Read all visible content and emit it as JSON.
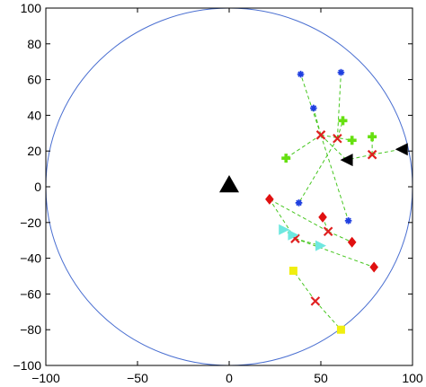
{
  "chart_data": {
    "type": "scatter",
    "title": "",
    "xlabel": "",
    "ylabel": "",
    "xlim": [
      -100,
      100
    ],
    "ylim": [
      -100,
      100
    ],
    "x_ticks": [
      -100,
      -50,
      0,
      50,
      100
    ],
    "y_ticks": [
      -100,
      -80,
      -60,
      -40,
      -20,
      0,
      20,
      40,
      60,
      80,
      100
    ],
    "x_tick_labels": [
      "−100",
      "−50",
      "0",
      "50",
      "100"
    ],
    "y_tick_labels": [
      "−100",
      "−80",
      "−60",
      "−40",
      "−20",
      "0",
      "20",
      "40",
      "60",
      "80",
      "100"
    ],
    "grid": false,
    "circle": {
      "cx": 0,
      "cy": 0,
      "r": 100,
      "color": "#4a6fd1"
    },
    "series": [
      {
        "marker": "triangle-up",
        "color": "#000000",
        "points": [
          [
            0,
            1
          ]
        ]
      },
      {
        "marker": "asterisk",
        "color": "#1f3fe0",
        "points": [
          [
            39,
            63
          ],
          [
            61,
            64
          ],
          [
            46,
            44
          ],
          [
            38,
            -9
          ],
          [
            65,
            -19
          ]
        ]
      },
      {
        "marker": "x",
        "color": "#e02020",
        "points": [
          [
            50,
            29
          ],
          [
            59,
            27
          ],
          [
            78,
            18
          ],
          [
            54,
            -25
          ],
          [
            36,
            -29
          ],
          [
            47,
            -64
          ]
        ]
      },
      {
        "marker": "plus",
        "color": "#66e010",
        "points": [
          [
            62,
            37
          ],
          [
            67,
            26
          ],
          [
            78,
            28
          ],
          [
            31,
            16
          ]
        ]
      },
      {
        "marker": "triangle-left",
        "color": "#000000",
        "points": [
          [
            64,
            15
          ],
          [
            94,
            21
          ]
        ]
      },
      {
        "marker": "diamond",
        "color": "#e01010",
        "points": [
          [
            22,
            -7
          ],
          [
            51,
            -17
          ],
          [
            67,
            -31
          ],
          [
            79,
            -45
          ]
        ]
      },
      {
        "marker": "triangle-right",
        "color": "#6ee8e0",
        "points": [
          [
            30,
            -24
          ],
          [
            35,
            -27
          ],
          [
            50,
            -33
          ]
        ]
      },
      {
        "marker": "square",
        "color": "#f0ee10",
        "points": [
          [
            35,
            -47
          ],
          [
            61,
            -80
          ]
        ]
      }
    ],
    "dashed_links": [
      {
        "color": "#46c61f",
        "from": [
          50,
          29
        ],
        "to": [
          39,
          63
        ]
      },
      {
        "color": "#46c61f",
        "from": [
          50,
          29
        ],
        "to": [
          46,
          44
        ]
      },
      {
        "color": "#46c61f",
        "from": [
          50,
          29
        ],
        "to": [
          31,
          16
        ]
      },
      {
        "color": "#46c61f",
        "from": [
          50,
          29
        ],
        "to": [
          67,
          26
        ]
      },
      {
        "color": "#46c61f",
        "from": [
          50,
          29
        ],
        "to": [
          64,
          15
        ]
      },
      {
        "color": "#46c61f",
        "from": [
          50,
          29
        ],
        "to": [
          65,
          -19
        ]
      },
      {
        "color": "#46c61f",
        "from": [
          59,
          27
        ],
        "to": [
          61,
          64
        ]
      },
      {
        "color": "#46c61f",
        "from": [
          59,
          27
        ],
        "to": [
          62,
          37
        ]
      },
      {
        "color": "#46c61f",
        "from": [
          59,
          27
        ],
        "to": [
          38,
          -9
        ]
      },
      {
        "color": "#46c61f",
        "from": [
          78,
          18
        ],
        "to": [
          78,
          28
        ]
      },
      {
        "color": "#46c61f",
        "from": [
          78,
          18
        ],
        "to": [
          94,
          21
        ]
      },
      {
        "color": "#46c61f",
        "from": [
          78,
          18
        ],
        "to": [
          64,
          15
        ]
      },
      {
        "color": "#46c61f",
        "from": [
          54,
          -25
        ],
        "to": [
          22,
          -7
        ]
      },
      {
        "color": "#46c61f",
        "from": [
          54,
          -25
        ],
        "to": [
          51,
          -17
        ]
      },
      {
        "color": "#46c61f",
        "from": [
          54,
          -25
        ],
        "to": [
          67,
          -31
        ]
      },
      {
        "color": "#46c61f",
        "from": [
          36,
          -29
        ],
        "to": [
          22,
          -7
        ]
      },
      {
        "color": "#46c61f",
        "from": [
          36,
          -29
        ],
        "to": [
          30,
          -24
        ]
      },
      {
        "color": "#46c61f",
        "from": [
          36,
          -29
        ],
        "to": [
          50,
          -33
        ]
      },
      {
        "color": "#46c61f",
        "from": [
          36,
          -29
        ],
        "to": [
          79,
          -45
        ]
      },
      {
        "color": "#46c61f",
        "from": [
          47,
          -64
        ],
        "to": [
          35,
          -47
        ]
      },
      {
        "color": "#46c61f",
        "from": [
          47,
          -64
        ],
        "to": [
          61,
          -80
        ]
      }
    ]
  }
}
